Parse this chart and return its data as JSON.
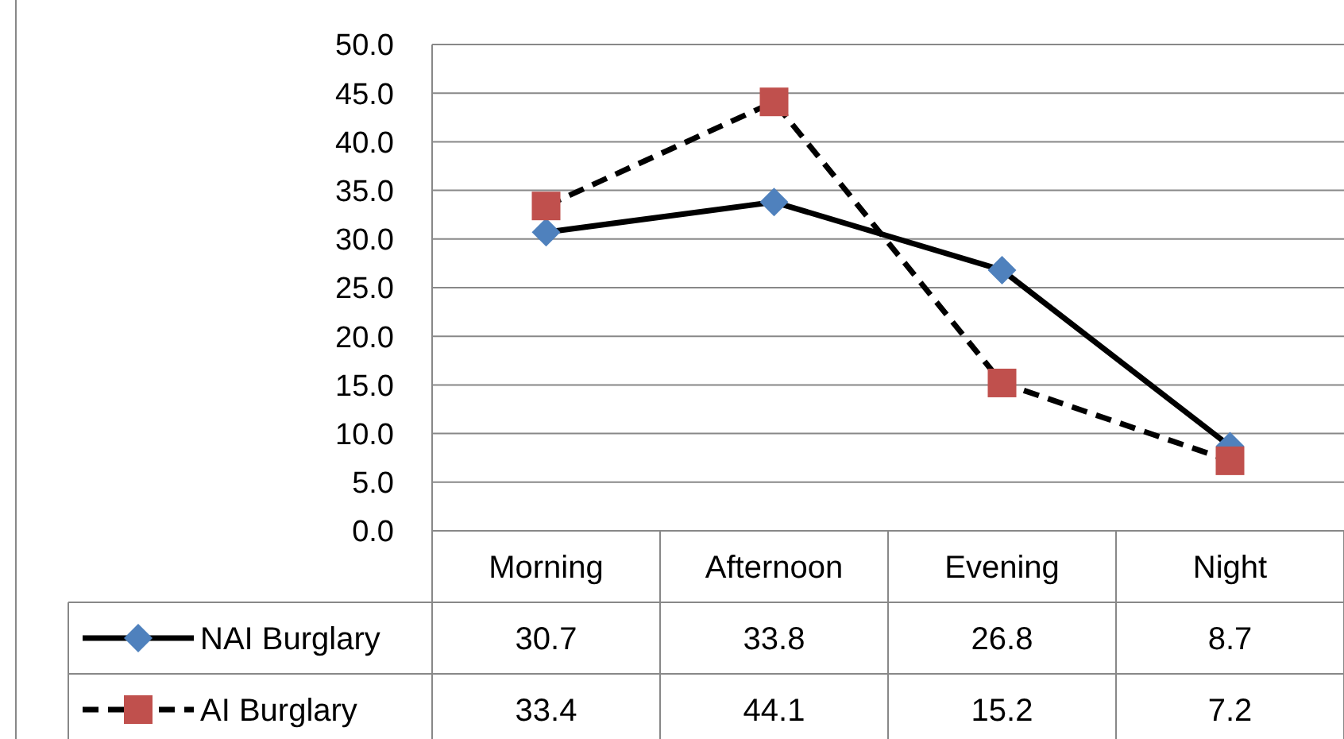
{
  "chart_data": {
    "type": "line",
    "categories": [
      "Morning",
      "Afternoon",
      "Evening",
      "Night"
    ],
    "series": [
      {
        "name": "NAI Burglary",
        "color": "#4f81bd",
        "marker": "diamond",
        "line_style": "solid",
        "values": [
          30.7,
          33.8,
          26.8,
          8.7
        ]
      },
      {
        "name": "AI Burglary",
        "color": "#c0504d",
        "marker": "square",
        "line_style": "dashed",
        "values": [
          33.4,
          44.1,
          15.2,
          7.2
        ]
      }
    ],
    "ylim": [
      0,
      50
    ],
    "yticks": [
      {
        "value": 0,
        "label": "0.0"
      },
      {
        "value": 5,
        "label": "5.0"
      },
      {
        "value": 10,
        "label": "10.0"
      },
      {
        "value": 15,
        "label": "15.0"
      },
      {
        "value": 20,
        "label": "20.0"
      },
      {
        "value": 25,
        "label": "25.0"
      },
      {
        "value": 30,
        "label": "30.0"
      },
      {
        "value": 35,
        "label": "35.0"
      },
      {
        "value": 40,
        "label": "40.0"
      },
      {
        "value": 45,
        "label": "45.0"
      },
      {
        "value": 50,
        "label": "50.0"
      }
    ],
    "grid": "y",
    "legend": "bottom left",
    "data_labels": true
  }
}
